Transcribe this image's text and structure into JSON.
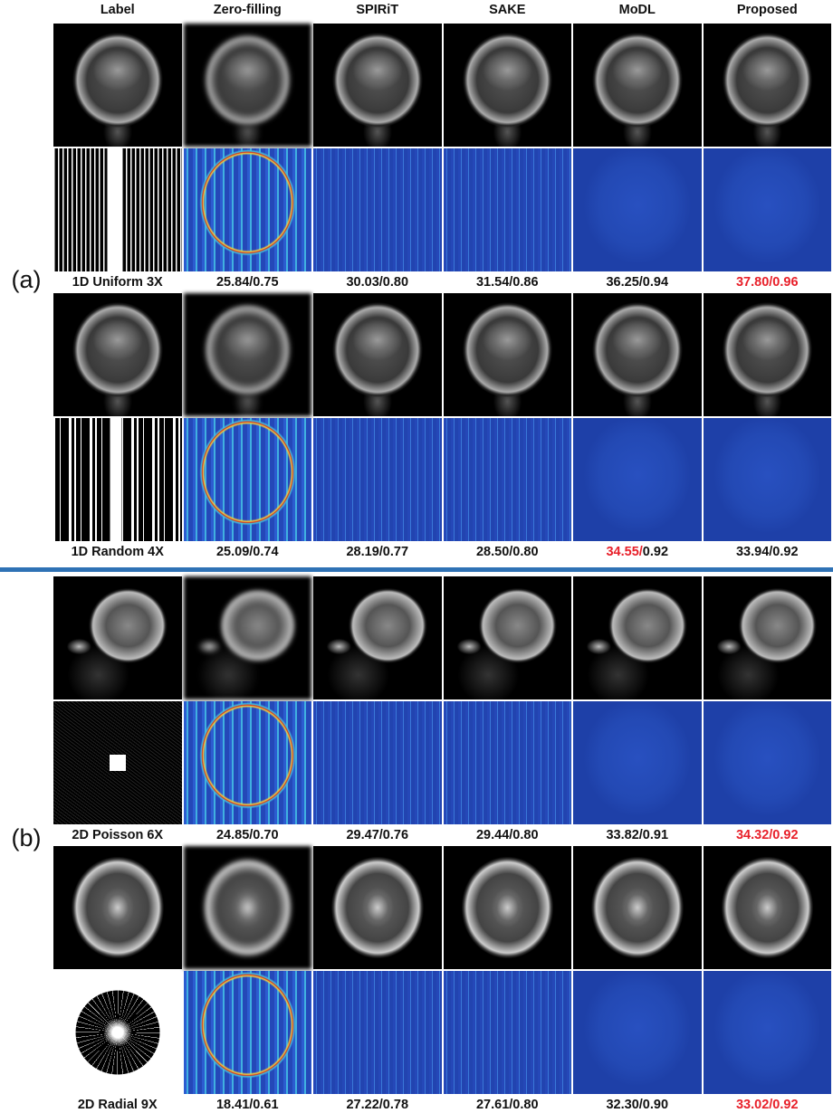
{
  "columns": [
    "Label",
    "Zero-filling",
    "SPIRiT",
    "SAKE",
    "MoDL",
    "Proposed"
  ],
  "separator": "/",
  "highlight_color": "#e8202a",
  "groups": [
    {
      "label": "(a)",
      "rows": [
        {
          "name": "1D Uniform 3X",
          "metrics": [
            {
              "psnr": "25.84",
              "ssim": "0.75"
            },
            {
              "psnr": "30.03",
              "ssim": "0.80"
            },
            {
              "psnr": "31.54",
              "ssim": "0.86"
            },
            {
              "psnr": "36.25",
              "ssim": "0.94"
            },
            {
              "psnr": "37.80",
              "ssim": "0.96",
              "best_psnr": true,
              "best_ssim": true
            }
          ]
        },
        {
          "name": "1D Random 4X",
          "metrics": [
            {
              "psnr": "25.09",
              "ssim": "0.74"
            },
            {
              "psnr": "28.19",
              "ssim": "0.77"
            },
            {
              "psnr": "28.50",
              "ssim": "0.80"
            },
            {
              "psnr": "34.55",
              "ssim": "0.92",
              "best_psnr": true
            },
            {
              "psnr": "33.94",
              "ssim": "0.92"
            }
          ]
        }
      ]
    },
    {
      "label": "(b)",
      "rows": [
        {
          "name": "2D Poisson 6X",
          "metrics": [
            {
              "psnr": "24.85",
              "ssim": "0.70"
            },
            {
              "psnr": "29.47",
              "ssim": "0.76"
            },
            {
              "psnr": "29.44",
              "ssim": "0.80"
            },
            {
              "psnr": "33.82",
              "ssim": "0.91"
            },
            {
              "psnr": "34.32",
              "ssim": "0.92",
              "best_psnr": true,
              "best_ssim": true
            }
          ]
        },
        {
          "name": "2D Radial 9X",
          "metrics": [
            {
              "psnr": "18.41",
              "ssim": "0.61"
            },
            {
              "psnr": "27.22",
              "ssim": "0.78"
            },
            {
              "psnr": "27.61",
              "ssim": "0.80"
            },
            {
              "psnr": "32.30",
              "ssim": "0.90"
            },
            {
              "psnr": "33.02",
              "ssim": "0.92",
              "best_psnr": true,
              "best_ssim": true
            }
          ]
        }
      ]
    }
  ]
}
